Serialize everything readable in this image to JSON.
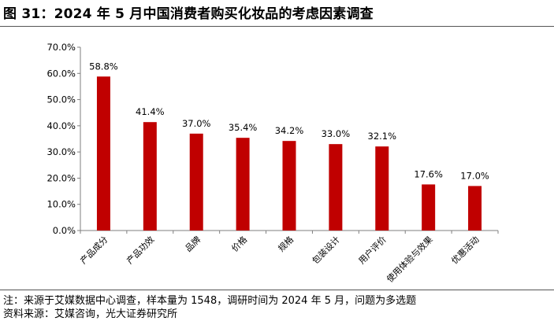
{
  "figure": {
    "title": "图 31：2024 年 5 月中国消费者购买化妆品的考虑因素调查"
  },
  "chart_data": {
    "type": "bar",
    "categories": [
      "产品成分",
      "产品功效",
      "品牌",
      "价格",
      "规格",
      "包装设计",
      "用户评价",
      "使用体验与效果",
      "优惠活动"
    ],
    "values": [
      58.8,
      41.4,
      37.0,
      35.4,
      34.2,
      33.0,
      32.1,
      17.6,
      17.0
    ],
    "data_labels": [
      "58.8%",
      "41.4%",
      "37.0%",
      "35.4%",
      "34.2%",
      "33.0%",
      "32.1%",
      "17.6%",
      "17.0%"
    ],
    "y_ticks": [
      "0.0%",
      "10.0%",
      "20.0%",
      "30.0%",
      "40.0%",
      "50.0%",
      "60.0%",
      "70.0%"
    ],
    "ylim": [
      0,
      70
    ],
    "bar_color": "#C00000",
    "grid": false,
    "legend": "none"
  },
  "notes": {
    "note": "注：来源于艾媒数据中心调查，样本量为 1548，调研时间为 2024 年 5 月，问题为多选题",
    "source": "资料来源：艾媒咨询，光大证券研究所"
  }
}
